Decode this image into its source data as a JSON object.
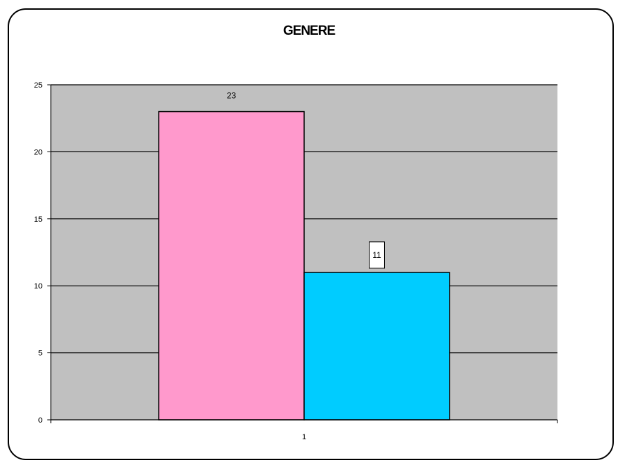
{
  "chart_data": {
    "type": "bar",
    "title": "GENERE",
    "xlabel": "",
    "ylabel": "",
    "categories": [
      "1"
    ],
    "series": [
      {
        "values": [
          23
        ],
        "color": "#ff99cc",
        "data_label": "23"
      },
      {
        "values": [
          11
        ],
        "color": "#00ccff",
        "data_label": "11"
      }
    ],
    "ylim": [
      0,
      25
    ],
    "yticks": [
      0,
      5,
      10,
      15,
      20,
      25
    ],
    "plot_background": "#c0c0c0",
    "grid": true,
    "legend": "none"
  }
}
